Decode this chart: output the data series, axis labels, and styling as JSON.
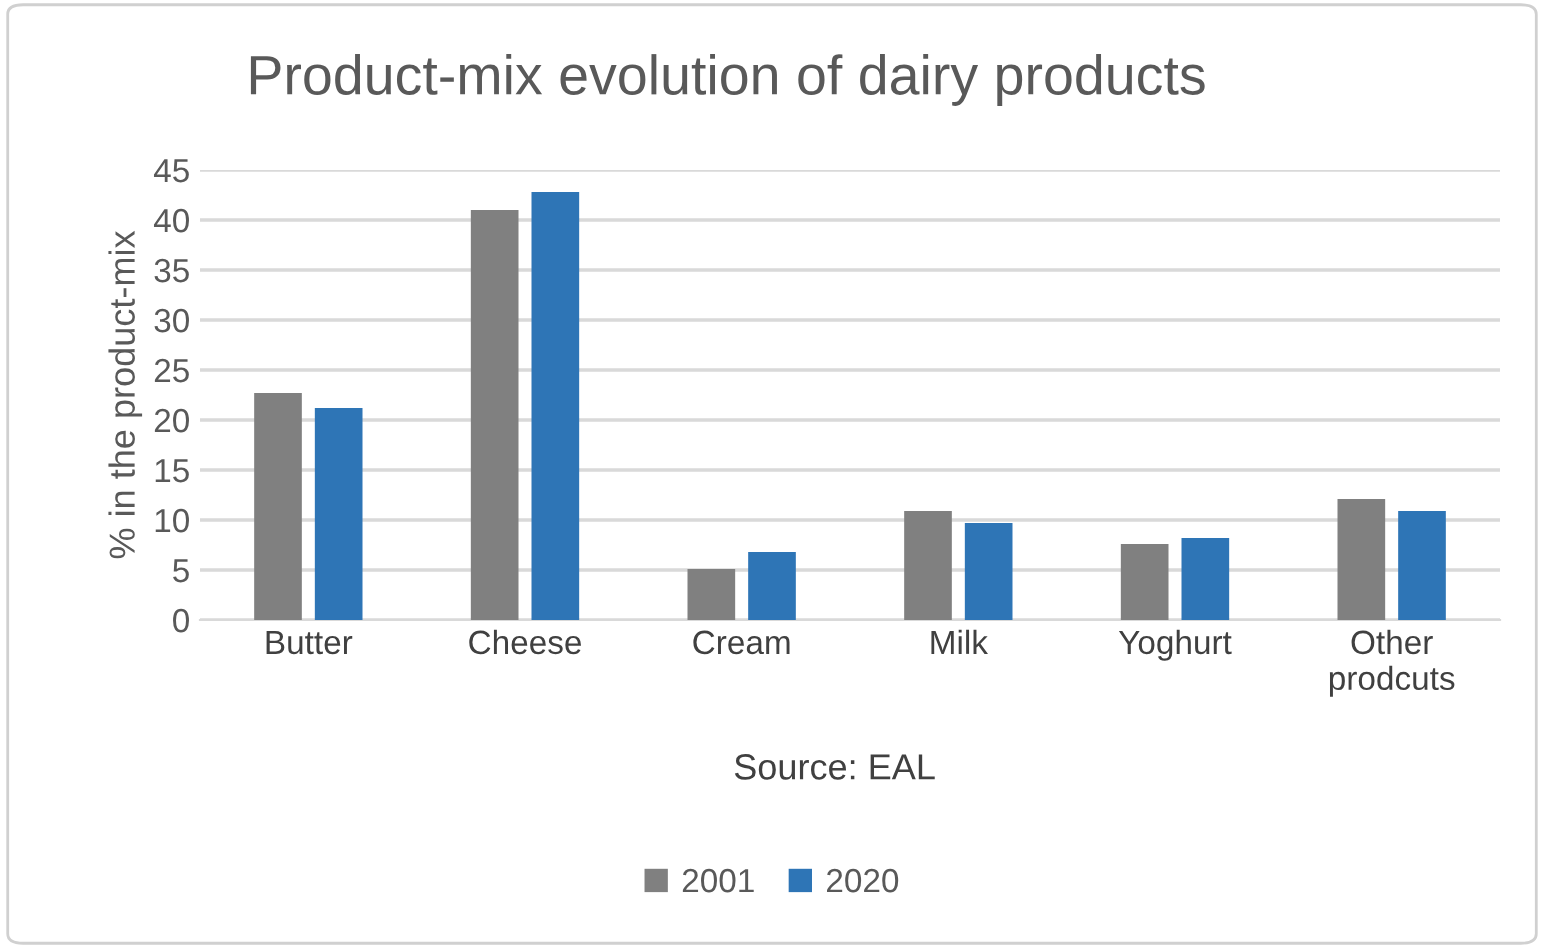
{
  "chart_data": {
    "type": "bar",
    "title": "Product-mix evolution of dairy products",
    "ylabel": "% in the product-mix",
    "categories": [
      "Butter",
      "Cheese",
      "Cream",
      "Milk",
      "Yoghurt",
      "Other\nprodcuts"
    ],
    "series": [
      {
        "name": "2001",
        "color": "#808080",
        "values": [
          22.7,
          41.0,
          5.1,
          10.9,
          7.6,
          12.1
        ]
      },
      {
        "name": "2020",
        "color": "#2e75b6",
        "values": [
          21.2,
          42.8,
          6.8,
          9.7,
          8.2,
          10.9
        ]
      }
    ],
    "ylim": [
      0,
      45
    ],
    "yticks": [
      0,
      5,
      10,
      15,
      20,
      25,
      30,
      35,
      40,
      45
    ],
    "grid": "y",
    "legend": "bottom",
    "annotations": [
      "Source: EAL"
    ]
  }
}
